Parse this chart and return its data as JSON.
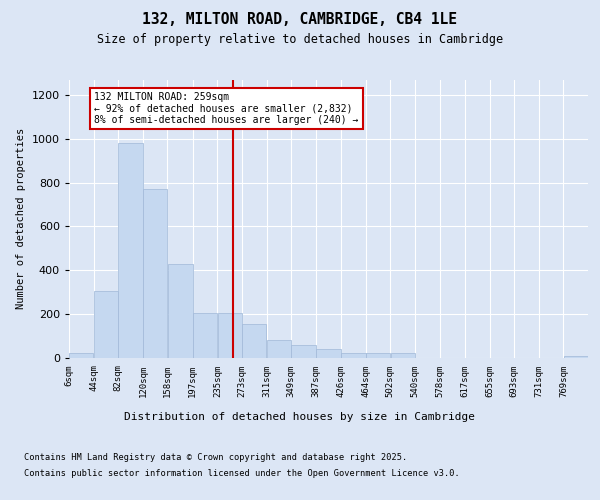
{
  "title": "132, MILTON ROAD, CAMBRIDGE, CB4 1LE",
  "subtitle": "Size of property relative to detached houses in Cambridge",
  "xlabel": "Distribution of detached houses by size in Cambridge",
  "ylabel": "Number of detached properties",
  "footnote1": "Contains HM Land Registry data © Crown copyright and database right 2025.",
  "footnote2": "Contains public sector information licensed under the Open Government Licence v3.0.",
  "annotation_title": "132 MILTON ROAD: 259sqm",
  "annotation_line1": "← 92% of detached houses are smaller (2,832)",
  "annotation_line2": "8% of semi-detached houses are larger (240) →",
  "property_size": 259,
  "bar_color": "#c5d8f0",
  "bar_edge_color": "#a0b8d8",
  "vline_color": "#cc0000",
  "annotation_box_color": "#cc0000",
  "bg_color": "#dce6f5",
  "plot_bg_color": "#dce6f5",
  "categories": [
    "6sqm",
    "44sqm",
    "82sqm",
    "120sqm",
    "158sqm",
    "197sqm",
    "235sqm",
    "273sqm",
    "311sqm",
    "349sqm",
    "387sqm",
    "426sqm",
    "464sqm",
    "502sqm",
    "540sqm",
    "578sqm",
    "617sqm",
    "655sqm",
    "693sqm",
    "731sqm",
    "769sqm"
  ],
  "bin_edges": [
    6,
    44,
    82,
    120,
    158,
    197,
    235,
    273,
    311,
    349,
    387,
    426,
    464,
    502,
    540,
    578,
    617,
    655,
    693,
    731,
    769,
    807
  ],
  "values": [
    20,
    305,
    980,
    770,
    430,
    205,
    205,
    155,
    80,
    55,
    40,
    20,
    20,
    20,
    0,
    0,
    0,
    0,
    0,
    0,
    5
  ],
  "ylim": [
    0,
    1270
  ],
  "yticks": [
    0,
    200,
    400,
    600,
    800,
    1000,
    1200
  ]
}
